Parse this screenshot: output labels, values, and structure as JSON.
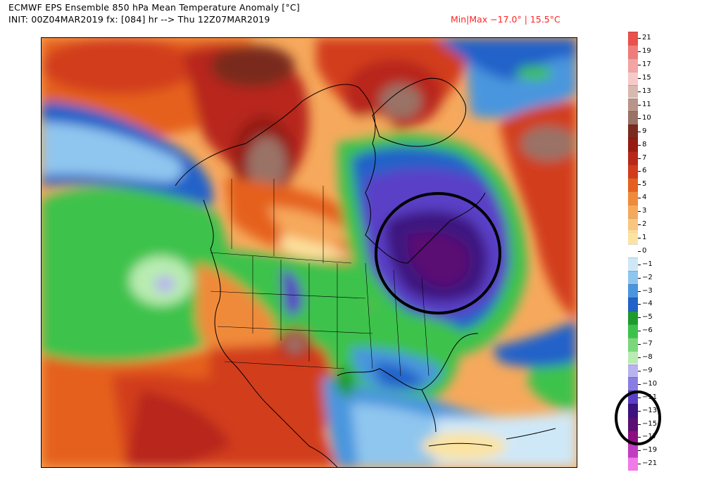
{
  "header": {
    "line1": "ECMWF EPS Ensemble 850 hPa Mean Temperature Anomaly [°C]",
    "line2": "INIT: 00Z04MAR2019 fx: [084] hr --> Thu 12Z07MAR2019",
    "minmax": "Min|Max −17.0° | 15.5°C"
  },
  "colorbar": {
    "labels": [
      "21",
      "19",
      "17",
      "15",
      "13",
      "11",
      "10",
      "9",
      "8",
      "7",
      "6",
      "5",
      "4",
      "3",
      "2",
      "1",
      "0",
      "−1",
      "−2",
      "−3",
      "−4",
      "−5",
      "−6",
      "−7",
      "−8",
      "−9",
      "−10",
      "−11",
      "−13",
      "−15",
      "−17",
      "−19",
      "−21"
    ],
    "colors": [
      "#e8514c",
      "#f07c7c",
      "#f5a3a3",
      "#f8c9c9",
      "#d9b8b0",
      "#b99488",
      "#9a7266",
      "#7a2b1f",
      "#961c12",
      "#b8281a",
      "#d23c1c",
      "#e5601f",
      "#f08a3a",
      "#f6a95c",
      "#f9c67e",
      "#fce3a0",
      "#ffffff",
      "#cfe8f8",
      "#8fc6ef",
      "#4a96de",
      "#2262c9",
      "#1e9b2e",
      "#3cc24b",
      "#7ad87b",
      "#b8ecb0",
      "#b8b2ee",
      "#8a7de2",
      "#5a3fc7",
      "#3c1280",
      "#5a0f72",
      "#8c0f82",
      "#c23cc0",
      "#f07ae8"
    ],
    "annotation": "circled-coldest-range"
  },
  "map": {
    "region": "North America",
    "annotation": "circled-cold-anomaly-northeast"
  }
}
